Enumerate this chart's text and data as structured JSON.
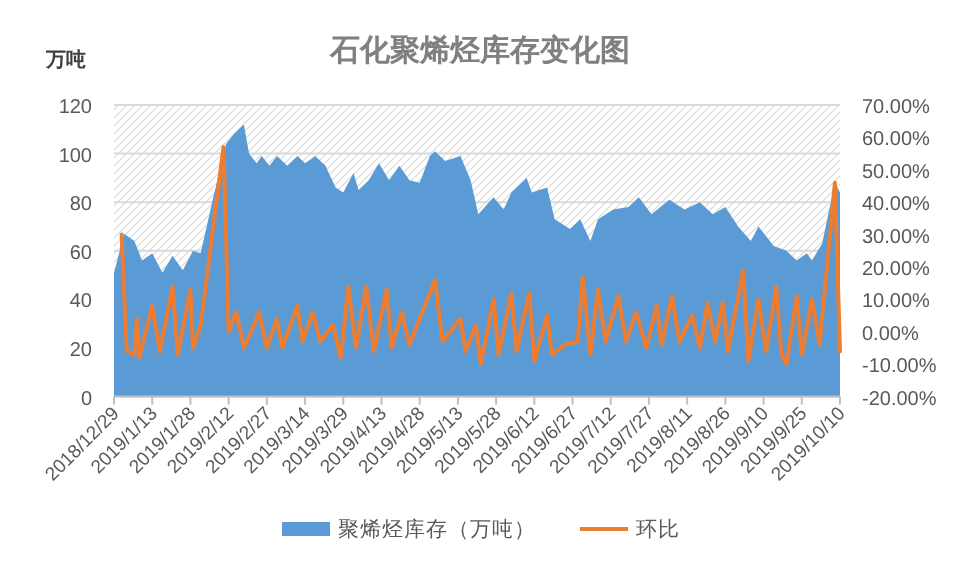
{
  "chart_data": {
    "type": "area",
    "title": "石化聚烯烃库存变化图",
    "ylabel": "万吨",
    "xlim": [
      "2018-12-29",
      "2019-10-10"
    ],
    "xticks": [
      {
        "value": "2018-12-29",
        "label": "2018/12/29"
      },
      {
        "value": "2019-01-13",
        "label": "2019/1/13"
      },
      {
        "value": "2019-01-28",
        "label": "2019/1/28"
      },
      {
        "value": "2019-02-12",
        "label": "2019/2/12"
      },
      {
        "value": "2019-02-27",
        "label": "2019/2/27"
      },
      {
        "value": "2019-03-14",
        "label": "2019/3/14"
      },
      {
        "value": "2019-03-29",
        "label": "2019/3/29"
      },
      {
        "value": "2019-04-13",
        "label": "2019/4/13"
      },
      {
        "value": "2019-04-28",
        "label": "2019/4/28"
      },
      {
        "value": "2019-05-13",
        "label": "2019/5/13"
      },
      {
        "value": "2019-05-28",
        "label": "2019/5/28"
      },
      {
        "value": "2019-06-12",
        "label": "2019/6/12"
      },
      {
        "value": "2019-06-27",
        "label": "2019/6/27"
      },
      {
        "value": "2019-07-12",
        "label": "2019/7/12"
      },
      {
        "value": "2019-07-27",
        "label": "2019/7/27"
      },
      {
        "value": "2019-08-11",
        "label": "2019/8/11"
      },
      {
        "value": "2019-08-26",
        "label": "2019/8/26"
      },
      {
        "value": "2019-09-10",
        "label": "2019/9/10"
      },
      {
        "value": "2019-09-25",
        "label": "2019/9/25"
      },
      {
        "value": "2019-10-10",
        "label": "2019/10/10"
      }
    ],
    "ylim": [
      0,
      120
    ],
    "yticks": [
      0,
      20,
      40,
      60,
      80,
      100,
      120
    ],
    "y2lim": [
      -20,
      70
    ],
    "y2ticks": [
      {
        "value": -20,
        "label": "-20.00%"
      },
      {
        "value": -10,
        "label": "-10.00%"
      },
      {
        "value": 0,
        "label": "0.00%"
      },
      {
        "value": 10,
        "label": "10.00%"
      },
      {
        "value": 20,
        "label": "20.00%"
      },
      {
        "value": 30,
        "label": "30.00%"
      },
      {
        "value": 40,
        "label": "40.00%"
      },
      {
        "value": 50,
        "label": "50.00%"
      },
      {
        "value": 60,
        "label": "60.00%"
      },
      {
        "value": 70,
        "label": "70.00%"
      }
    ],
    "grid": "y",
    "legend": "bottom",
    "series": [
      {
        "name": "聚烯烃库存（万吨）",
        "color": "#5b9bd5",
        "x": [
          "2018-12-29",
          "2019-01-02",
          "2019-01-06",
          "2019-01-09",
          "2019-01-13",
          "2019-01-17",
          "2019-01-21",
          "2019-01-25",
          "2019-01-29",
          "2019-02-01",
          "2019-02-06",
          "2019-02-11",
          "2019-02-14",
          "2019-02-16",
          "2019-02-18",
          "2019-02-20",
          "2019-02-23",
          "2019-02-25",
          "2019-02-28",
          "2019-03-03",
          "2019-03-07",
          "2019-03-11",
          "2019-03-14",
          "2019-03-18",
          "2019-03-22",
          "2019-03-26",
          "2019-03-29",
          "2019-04-02",
          "2019-04-04",
          "2019-04-08",
          "2019-04-12",
          "2019-04-16",
          "2019-04-20",
          "2019-04-24",
          "2019-04-28",
          "2019-05-02",
          "2019-05-04",
          "2019-05-08",
          "2019-05-14",
          "2019-05-18",
          "2019-05-21",
          "2019-05-27",
          "2019-05-31",
          "2019-06-03",
          "2019-06-09",
          "2019-06-11",
          "2019-06-17",
          "2019-06-20",
          "2019-06-26",
          "2019-06-30",
          "2019-07-04",
          "2019-07-07",
          "2019-07-13",
          "2019-07-19",
          "2019-07-23",
          "2019-07-28",
          "2019-08-04",
          "2019-08-10",
          "2019-08-16",
          "2019-08-21",
          "2019-08-26",
          "2019-08-31",
          "2019-09-05",
          "2019-09-08",
          "2019-09-14",
          "2019-09-19",
          "2019-09-23",
          "2019-09-27",
          "2019-09-29",
          "2019-10-03",
          "2019-10-08",
          "2019-10-10"
        ],
        "values": [
          51,
          67,
          64,
          56,
          59,
          51,
          58,
          52,
          60,
          59,
          82,
          104,
          108,
          110,
          112,
          100,
          96,
          99,
          95,
          99,
          95,
          99,
          96,
          99,
          95,
          86,
          84,
          92,
          85,
          89,
          96,
          89,
          95,
          89,
          88,
          99,
          101,
          97,
          99,
          89,
          75,
          82,
          77,
          84,
          90,
          84,
          86,
          73,
          69,
          73,
          64,
          73,
          77,
          78,
          82,
          75,
          81,
          77,
          80,
          75,
          78,
          70,
          64,
          70,
          62,
          60,
          56,
          59,
          56,
          63,
          88,
          84
        ]
      },
      {
        "name": "环比",
        "type": "line",
        "axis": "y2",
        "color": "#ed7d31",
        "x": [
          "2019-01-01",
          "2019-01-03",
          "2019-01-06",
          "2019-01-07",
          "2019-01-08",
          "2019-01-13",
          "2019-01-16",
          "2019-01-21",
          "2019-01-23",
          "2019-01-28",
          "2019-01-29",
          "2019-02-01",
          "2019-02-10",
          "2019-02-12",
          "2019-02-15",
          "2019-02-18",
          "2019-02-24",
          "2019-02-27",
          "2019-03-03",
          "2019-03-05",
          "2019-03-11",
          "2019-03-13",
          "2019-03-17",
          "2019-03-20",
          "2019-03-25",
          "2019-03-28",
          "2019-03-31",
          "2019-04-03",
          "2019-04-07",
          "2019-04-10",
          "2019-04-15",
          "2019-04-17",
          "2019-04-21",
          "2019-04-24",
          "2019-04-28",
          "2019-04-30",
          "2019-05-04",
          "2019-05-07",
          "2019-05-14",
          "2019-05-16",
          "2019-05-20",
          "2019-05-22",
          "2019-05-27",
          "2019-05-29",
          "2019-06-03",
          "2019-06-05",
          "2019-06-10",
          "2019-06-12",
          "2019-06-17",
          "2019-06-19",
          "2019-06-24",
          "2019-06-29",
          "2019-07-01",
          "2019-07-04",
          "2019-07-07",
          "2019-07-10",
          "2019-07-15",
          "2019-07-18",
          "2019-07-22",
          "2019-07-26",
          "2019-07-30",
          "2019-08-01",
          "2019-08-05",
          "2019-08-08",
          "2019-08-13",
          "2019-08-16",
          "2019-08-19",
          "2019-08-22",
          "2019-08-25",
          "2019-08-27",
          "2019-09-02",
          "2019-09-04",
          "2019-09-08",
          "2019-09-11",
          "2019-09-15",
          "2019-09-17",
          "2019-09-19",
          "2019-09-23",
          "2019-09-25",
          "2019-09-29",
          "2019-10-02",
          "2019-10-08",
          "2019-10-10"
        ],
        "values": [
          30,
          -6,
          -7,
          4,
          -8,
          8,
          -6,
          14,
          -7,
          13,
          -5,
          2,
          57,
          0,
          6,
          -5,
          6,
          -5,
          4,
          -5,
          8,
          -3,
          6,
          -3,
          2,
          -8,
          14,
          -5,
          14,
          -6,
          13,
          -5,
          6,
          -4,
          4,
          8,
          16,
          -3,
          4,
          -6,
          2,
          -10,
          10,
          -7,
          12,
          -6,
          12,
          -9,
          5,
          -7,
          -4,
          -3,
          17,
          -7,
          13,
          -3,
          11,
          -3,
          6,
          -5,
          8,
          -4,
          11,
          -3,
          5,
          -5,
          9,
          -3,
          9,
          -6,
          19,
          -9,
          10,
          -6,
          14,
          -7,
          -10,
          11,
          -7,
          10,
          -4,
          46,
          -6
        ]
      }
    ]
  }
}
